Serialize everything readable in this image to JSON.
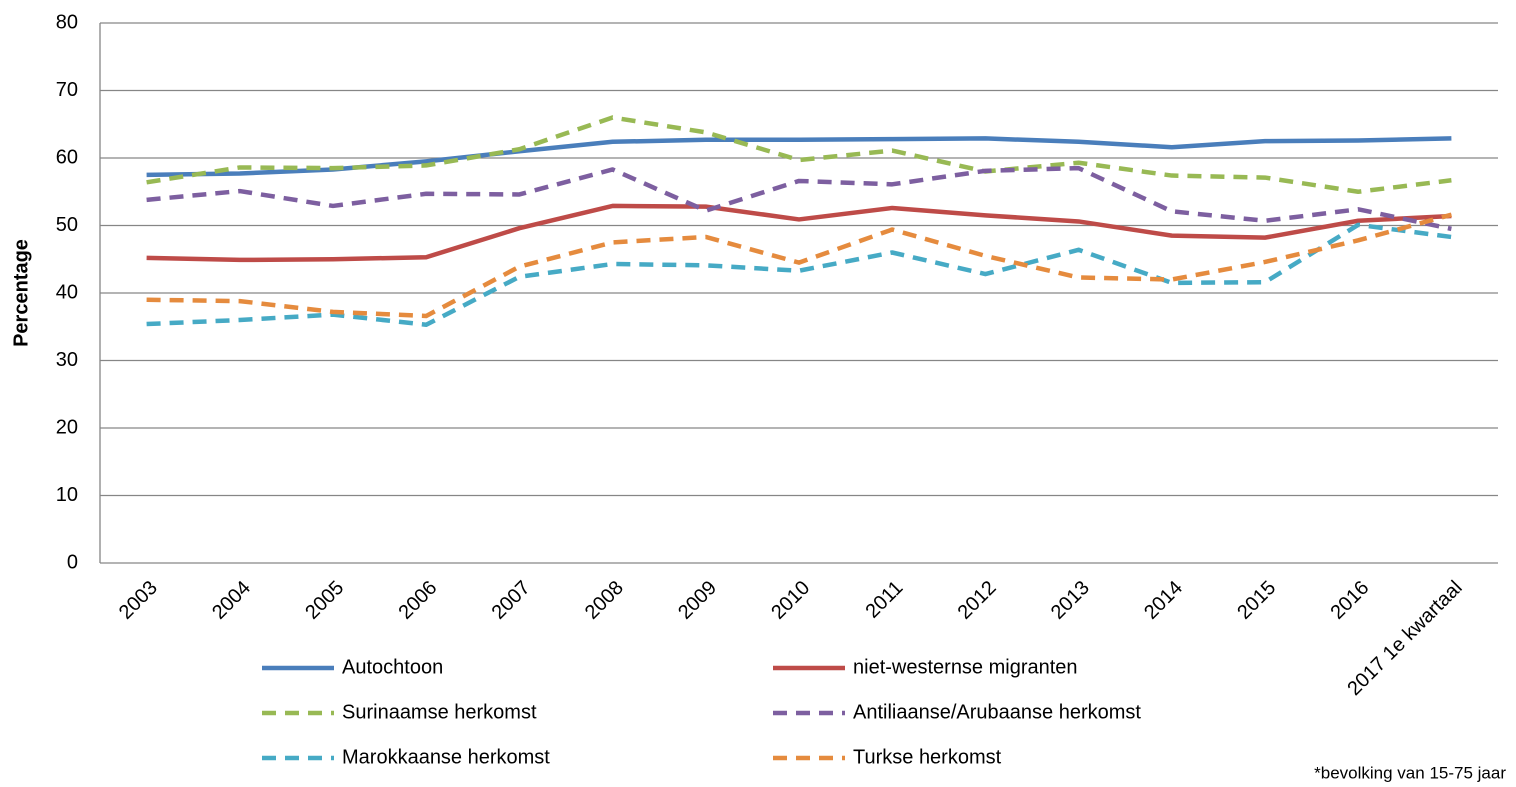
{
  "chart_data": {
    "type": "line",
    "y_label": "Percentage",
    "footnote": "*bevolking van 15-75 jaar",
    "categories": [
      "2003",
      "2004",
      "2005",
      "2006",
      "2007",
      "2008",
      "2009",
      "2010",
      "2011",
      "2012",
      "2013",
      "2014",
      "2015",
      "2016",
      "2017 1e kwartaal"
    ],
    "ylim": [
      0,
      80
    ],
    "yticks": [
      0,
      10,
      20,
      30,
      40,
      50,
      60,
      70,
      80
    ],
    "grid": true,
    "series": [
      {
        "name": "Autochtoon",
        "color": "#4a7ebb",
        "dashed": false,
        "values": [
          57.5,
          57.7,
          58.3,
          59.5,
          61.0,
          62.4,
          62.7,
          62.7,
          62.8,
          62.9,
          62.4,
          61.6,
          62.5,
          62.6,
          62.9
        ]
      },
      {
        "name": "niet-westernse migranten",
        "color": "#be4b48",
        "dashed": false,
        "values": [
          45.2,
          44.9,
          45.0,
          45.3,
          49.6,
          52.9,
          52.8,
          50.9,
          52.6,
          51.5,
          50.6,
          48.5,
          48.2,
          50.7,
          51.4
        ]
      },
      {
        "name": "Surinaamse herkomst",
        "color": "#98b954",
        "dashed": true,
        "values": [
          56.4,
          58.6,
          58.5,
          58.9,
          61.3,
          66.0,
          63.8,
          59.7,
          61.1,
          58.0,
          59.3,
          57.4,
          57.1,
          55.0,
          56.7
        ]
      },
      {
        "name": "Antiliaanse/Arubaanse herkomst",
        "color": "#7d5fa0",
        "dashed": true,
        "values": [
          53.8,
          55.1,
          52.9,
          54.7,
          54.6,
          58.3,
          52.2,
          56.6,
          56.1,
          58.1,
          58.5,
          52.1,
          50.7,
          52.4,
          49.5
        ]
      },
      {
        "name": "Marokkaanse herkomst",
        "color": "#46aac5",
        "dashed": true,
        "values": [
          35.4,
          36.0,
          36.8,
          35.3,
          42.4,
          44.3,
          44.1,
          43.3,
          46.0,
          42.8,
          46.4,
          41.5,
          41.6,
          50.1,
          48.3
        ]
      },
      {
        "name": "Turkse herkomst",
        "color": "#e58b3e",
        "dashed": true,
        "values": [
          39.0,
          38.8,
          37.2,
          36.6,
          43.9,
          47.5,
          48.3,
          44.5,
          49.4,
          45.5,
          42.3,
          42.0,
          44.6,
          47.8,
          51.6
        ]
      }
    ]
  }
}
